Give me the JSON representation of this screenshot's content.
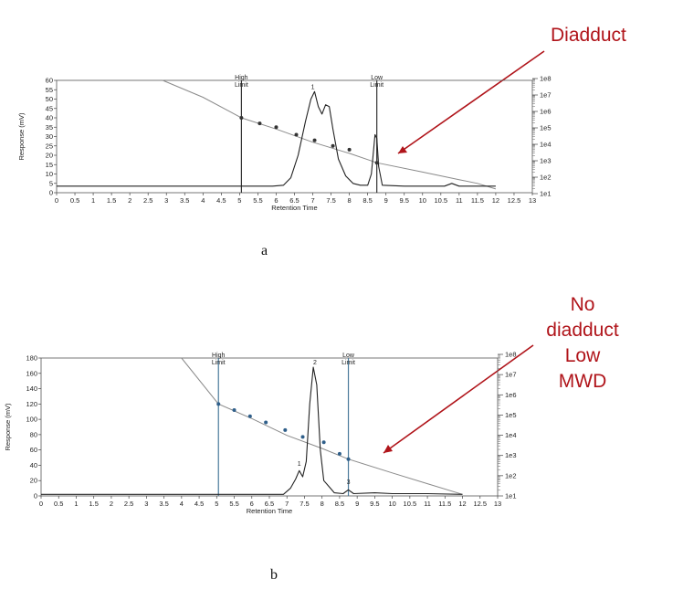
{
  "colors": {
    "annotation": "#b0141a",
    "trace": "#222222",
    "calibration": "#8a8a8a",
    "points_b": "#2f5f8a",
    "limit_b": "#4a7a9b"
  },
  "chart_data": [
    {
      "panel": "a",
      "type": "line",
      "caption": "a",
      "xlabel": "Retention Time",
      "ylabel": "Response (mV)",
      "xlim": [
        0,
        13
      ],
      "ylim": [
        0,
        60
      ],
      "x_ticks": [
        "0",
        "0.5",
        "1",
        "1.5",
        "2",
        "2.5",
        "3",
        "3.5",
        "4",
        "4.5",
        "5",
        "5.5",
        "6",
        "6.5",
        "7",
        "7.5",
        "8",
        "8.5",
        "9",
        "9.5",
        "10",
        "10.5",
        "11",
        "11.5",
        "12",
        "12.5",
        "13"
      ],
      "y_ticks": [
        "0",
        "5",
        "10",
        "15",
        "20",
        "25",
        "30",
        "35",
        "40",
        "45",
        "50",
        "55",
        "60"
      ],
      "right_axis_ticks": [
        "1e8",
        "1e7",
        "1e6",
        "1e5",
        "1e4",
        "1e3",
        "1e2",
        "1e1"
      ],
      "limits": [
        {
          "label_1": "High",
          "label_2": "Limit",
          "x": 5.05
        },
        {
          "label_1": "Low",
          "label_2": "Limit",
          "x": 8.75
        }
      ],
      "peak_labels": [
        {
          "text": "1",
          "x": 7.0,
          "y": 54
        }
      ],
      "trace": [
        [
          0,
          3.5
        ],
        [
          5.9,
          3.5
        ],
        [
          6.2,
          4
        ],
        [
          6.4,
          8
        ],
        [
          6.6,
          20
        ],
        [
          6.8,
          38
        ],
        [
          6.95,
          50
        ],
        [
          7.05,
          54
        ],
        [
          7.15,
          46
        ],
        [
          7.25,
          42
        ],
        [
          7.35,
          47
        ],
        [
          7.45,
          46
        ],
        [
          7.55,
          34
        ],
        [
          7.7,
          18
        ],
        [
          7.9,
          9
        ],
        [
          8.1,
          5
        ],
        [
          8.3,
          4
        ],
        [
          8.5,
          4
        ],
        [
          8.6,
          10
        ],
        [
          8.7,
          31
        ],
        [
          8.75,
          29
        ],
        [
          8.8,
          14
        ],
        [
          8.9,
          4
        ],
        [
          9.5,
          3.5
        ],
        [
          10.6,
          3.5
        ],
        [
          10.8,
          5
        ],
        [
          11.0,
          3.5
        ],
        [
          12,
          3.5
        ]
      ],
      "calibration_line": [
        [
          2.9,
          60
        ],
        [
          4,
          51
        ],
        [
          5.05,
          40
        ],
        [
          6,
          34
        ],
        [
          7,
          27
        ],
        [
          8,
          21
        ],
        [
          8.75,
          16
        ],
        [
          10,
          11
        ],
        [
          11,
          7
        ],
        [
          11.5,
          5
        ],
        [
          12,
          2
        ]
      ],
      "calibration_points": [
        [
          5.05,
          40
        ],
        [
          5.55,
          37
        ],
        [
          6.0,
          35
        ],
        [
          6.55,
          31
        ],
        [
          7.05,
          28
        ],
        [
          7.55,
          25
        ],
        [
          8.0,
          23
        ],
        [
          8.75,
          16
        ]
      ]
    },
    {
      "panel": "b",
      "type": "line",
      "caption": "b",
      "xlabel": "Retention Time",
      "ylabel": "Response (mV)",
      "xlim": [
        0,
        13
      ],
      "ylim": [
        0,
        180
      ],
      "x_ticks": [
        "0",
        "0.5",
        "1",
        "1.5",
        "2",
        "2.5",
        "3",
        "3.5",
        "4",
        "4.5",
        "5",
        "5.5",
        "6",
        "6.5",
        "7",
        "7.5",
        "8",
        "8.5",
        "9",
        "9.5",
        "10",
        "10.5",
        "11",
        "11.5",
        "12",
        "12.5",
        "13"
      ],
      "y_ticks": [
        "0",
        "20",
        "40",
        "60",
        "80",
        "100",
        "120",
        "140",
        "160",
        "180"
      ],
      "right_axis_ticks": [
        "1e8",
        "1e7",
        "1e6",
        "1e5",
        "1e4",
        "1e3",
        "1e2",
        "1e1"
      ],
      "limits": [
        {
          "label_1": "High",
          "label_2": "Limit",
          "x": 5.05
        },
        {
          "label_1": "Low",
          "label_2": "Limit",
          "x": 8.75
        }
      ],
      "peak_labels": [
        {
          "text": "2",
          "x": 7.8,
          "y": 168
        },
        {
          "text": "1",
          "x": 7.35,
          "y": 36
        },
        {
          "text": "3",
          "x": 8.75,
          "y": 12
        }
      ],
      "trace": [
        [
          0,
          2
        ],
        [
          6.9,
          2
        ],
        [
          7.1,
          10
        ],
        [
          7.25,
          22
        ],
        [
          7.35,
          33
        ],
        [
          7.45,
          25
        ],
        [
          7.55,
          45
        ],
        [
          7.65,
          120
        ],
        [
          7.75,
          168
        ],
        [
          7.85,
          145
        ],
        [
          7.95,
          60
        ],
        [
          8.05,
          20
        ],
        [
          8.2,
          12
        ],
        [
          8.35,
          4
        ],
        [
          8.6,
          3
        ],
        [
          8.75,
          8
        ],
        [
          8.9,
          3
        ],
        [
          9.5,
          4
        ],
        [
          10,
          3
        ],
        [
          11,
          3
        ],
        [
          12,
          2
        ]
      ],
      "calibration_line": [
        [
          4,
          180
        ],
        [
          5.05,
          120
        ],
        [
          6,
          101
        ],
        [
          7,
          79
        ],
        [
          8,
          62
        ],
        [
          8.75,
          48
        ],
        [
          10,
          30
        ],
        [
          11,
          16
        ],
        [
          12,
          2
        ]
      ],
      "calibration_points": [
        [
          5.05,
          120
        ],
        [
          5.5,
          112
        ],
        [
          5.95,
          104
        ],
        [
          6.4,
          96
        ],
        [
          6.95,
          86
        ],
        [
          7.45,
          77
        ],
        [
          8.05,
          70
        ],
        [
          8.5,
          55
        ],
        [
          8.75,
          48
        ]
      ]
    }
  ],
  "annotations": {
    "a": [
      "Diadduct"
    ],
    "b": [
      "No",
      "diadduct",
      "Low",
      "MWD"
    ]
  }
}
